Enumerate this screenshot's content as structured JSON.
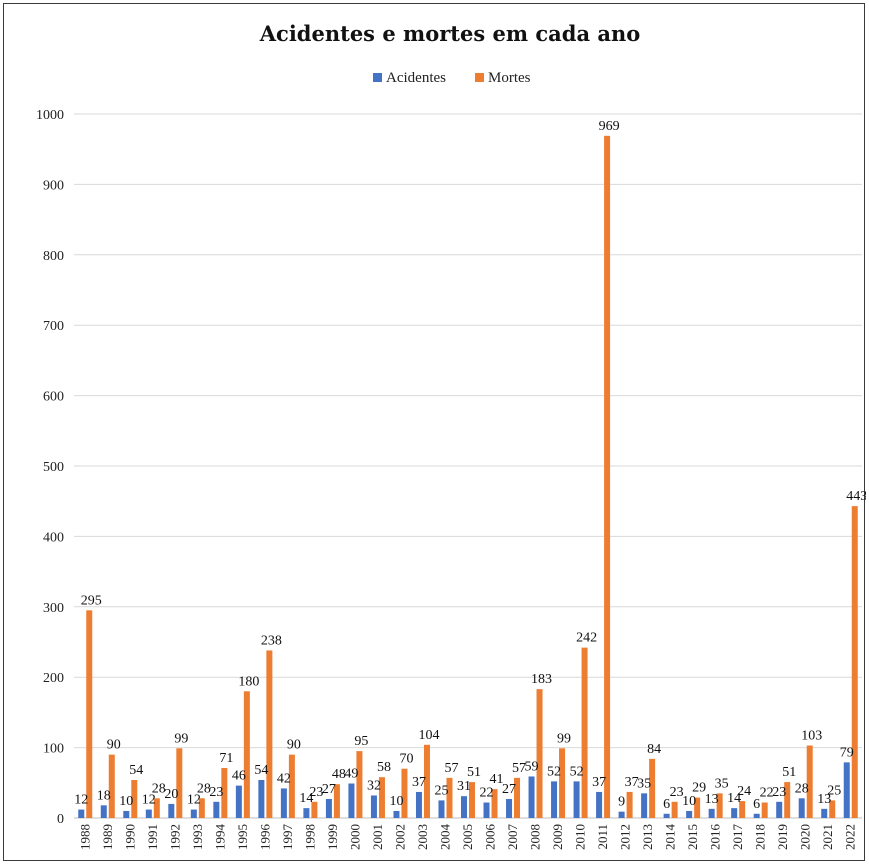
{
  "chart_data": {
    "type": "bar",
    "title": "Acidentes e mortes em cada ano",
    "xlabel": "",
    "ylabel": "",
    "ylim": [
      0,
      1000
    ],
    "yticks": [
      0,
      100,
      200,
      300,
      400,
      500,
      600,
      700,
      800,
      900,
      1000
    ],
    "grid": true,
    "legend_position": "top",
    "categories": [
      "1988",
      "1989",
      "1990",
      "1991",
      "1992",
      "1993",
      "1994",
      "1995",
      "1996",
      "1997",
      "1998",
      "1999",
      "2000",
      "2001",
      "2002",
      "2003",
      "2004",
      "2005",
      "2006",
      "2007",
      "2008",
      "2009",
      "2010",
      "2011",
      "2012",
      "2013",
      "2014",
      "2015",
      "2016",
      "2017",
      "2018",
      "2019",
      "2020",
      "2021",
      "2022"
    ],
    "series": [
      {
        "name": "Acidentes",
        "color": "#4472c4",
        "values": [
          12,
          18,
          10,
          12,
          20,
          12,
          23,
          46,
          54,
          42,
          14,
          27,
          49,
          32,
          10,
          37,
          25,
          31,
          22,
          27,
          59,
          52,
          52,
          37,
          9,
          35,
          6,
          10,
          13,
          14,
          6,
          23,
          28,
          13,
          79
        ]
      },
      {
        "name": "Mortes",
        "color": "#ed7d31",
        "values": [
          295,
          90,
          54,
          28,
          99,
          28,
          71,
          180,
          238,
          90,
          23,
          48,
          95,
          58,
          70,
          104,
          57,
          51,
          41,
          57,
          183,
          99,
          242,
          969,
          37,
          84,
          23,
          29,
          35,
          24,
          22,
          51,
          103,
          25,
          443
        ]
      }
    ]
  }
}
